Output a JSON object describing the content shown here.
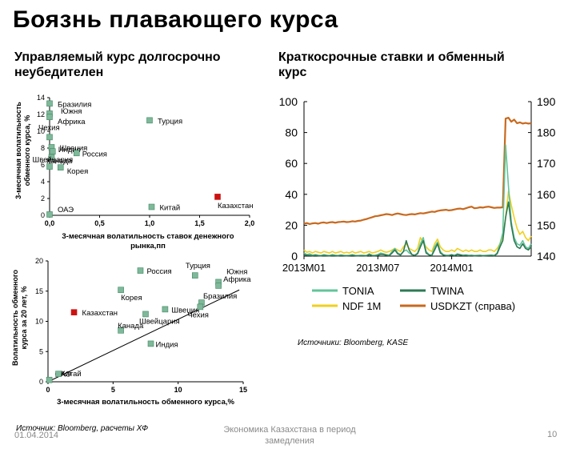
{
  "page": {
    "title": "Боязнь плавающего курса",
    "left_subtitle": "Управляемый курс долгосрочно неубедителен",
    "right_subtitle": "Краткосрочные ставки и обменный курс",
    "left_source": "Источник: Bloomberg,  расчеты ХФ",
    "right_source": "Источники: Bloomberg, KASE",
    "footer_date": "01.04.2014",
    "footer_center": "Экономика Казахстана в период замедления",
    "page_number": "10",
    "colors": {
      "marker": "#7fb89a",
      "marker_edge": "#3f8a63",
      "highlight": "#cc1111"
    }
  },
  "chart_data": [
    {
      "type": "scatter",
      "name": "top-scatter",
      "xlabel": "3-месячная волатильность ставок денежного рынка,пп",
      "ylabel": "3-месячная волатильность обменного курса, %",
      "xlim": [
        0,
        2
      ],
      "ylim": [
        0,
        14
      ],
      "xticks": [
        "0,0",
        "0,5",
        "1,0",
        "1,5",
        "2,0"
      ],
      "yticks": [
        "0",
        "2",
        "4",
        "6",
        "8",
        "10",
        "12",
        "14"
      ],
      "points": [
        {
          "label": "Бразилия",
          "x": 0.0,
          "y": 13.3
        },
        {
          "label": "Южня",
          "x": 0.0,
          "y": 12.1
        },
        {
          "label": "Африка",
          "x": 0.0,
          "y": 11.7
        },
        {
          "label": "Турция",
          "x": 1.0,
          "y": 11.3
        },
        {
          "label": "Чехия",
          "x": 0.0,
          "y": 9.3
        },
        {
          "label": "Швеция",
          "x": 0.02,
          "y": 8.1
        },
        {
          "label": "Индия",
          "x": 0.03,
          "y": 7.6
        },
        {
          "label": "Россия",
          "x": 0.27,
          "y": 7.4
        },
        {
          "label": "Швейцария",
          "x": 0.02,
          "y": 6.9
        },
        {
          "label": "Канада",
          "x": 0.0,
          "y": 5.8
        },
        {
          "label": "Корея",
          "x": 0.11,
          "y": 5.7
        },
        {
          "label": "Китай",
          "x": 1.02,
          "y": 1.0
        },
        {
          "label": "Казахстан",
          "x": 1.68,
          "y": 2.2,
          "highlight": true
        },
        {
          "label": "ОАЭ",
          "x": 0.0,
          "y": 0.1
        }
      ]
    },
    {
      "type": "scatter",
      "name": "bottom-scatter",
      "xlabel": "3-месячная волатильность обменного курса,%",
      "ylabel": "Волатильность обменного курса за 20 лет, %",
      "xlim": [
        0,
        15
      ],
      "ylim": [
        0,
        20
      ],
      "xticks": [
        "0",
        "5",
        "10",
        "15"
      ],
      "yticks": [
        "0",
        "5",
        "10",
        "15",
        "20"
      ],
      "trendline": [
        [
          0,
          0
        ],
        [
          14.7,
          15.2
        ]
      ],
      "points": [
        {
          "label": "Россия",
          "x": 7.1,
          "y": 18.4
        },
        {
          "label": "Турция",
          "x": 11.3,
          "y": 17.6
        },
        {
          "label": "Южня",
          "x": 13.1,
          "y": 16.5
        },
        {
          "label": "Африка",
          "x": 13.1,
          "y": 15.9
        },
        {
          "label": "Корея",
          "x": 5.6,
          "y": 15.2
        },
        {
          "label": "Бразилия",
          "x": 11.8,
          "y": 13.1
        },
        {
          "label": "Швеция",
          "x": 9.0,
          "y": 12.0
        },
        {
          "label": "Чехия",
          "x": 11.7,
          "y": 12.4
        },
        {
          "label": "Швейцария",
          "x": 7.5,
          "y": 11.2
        },
        {
          "label": "Канада",
          "x": 5.6,
          "y": 8.5
        },
        {
          "label": "Индия",
          "x": 7.9,
          "y": 6.3
        },
        {
          "label": "Казахстан",
          "x": 2.0,
          "y": 11.5,
          "highlight": true
        },
        {
          "label": "ОАЭ",
          "x": 0.1,
          "y": 0.3
        },
        {
          "label": "Китай",
          "x": 0.8,
          "y": 1.3
        }
      ]
    },
    {
      "type": "line",
      "name": "rates-chart",
      "x_start": "2013M01",
      "x_ticks": [
        "2013M01",
        "2013M07",
        "2014M01"
      ],
      "x_tick_index": [
        0,
        26,
        52
      ],
      "ylim_left": [
        0,
        100
      ],
      "yticks_left": [
        "0",
        "20",
        "40",
        "60",
        "80",
        "100"
      ],
      "ylim_right": [
        140,
        190
      ],
      "yticks_right": [
        "140",
        "150",
        "160",
        "170",
        "180",
        "190"
      ],
      "series": [
        {
          "name": "USDKZT (справа)",
          "axis": "right",
          "color": "#c8691e",
          "values": [
            150.5,
            150.7,
            150.4,
            150.6,
            150.7,
            150.5,
            150.8,
            150.9,
            150.7,
            150.9,
            151.0,
            150.8,
            151.0,
            151.1,
            151.2,
            151.0,
            151.1,
            151.3,
            151.2,
            151.4,
            151.5,
            151.8,
            152.0,
            152.3,
            152.6,
            152.9,
            153.0,
            153.2,
            153.4,
            153.6,
            153.5,
            153.3,
            153.6,
            153.8,
            153.6,
            153.4,
            153.3,
            153.5,
            153.6,
            153.5,
            153.7,
            153.9,
            153.8,
            154.0,
            154.2,
            154.4,
            154.3,
            154.6,
            154.8,
            154.9,
            155.0,
            154.8,
            154.9,
            155.1,
            155.3,
            155.4,
            155.2,
            155.5,
            155.8,
            156.0,
            155.5,
            155.6,
            155.8,
            155.7,
            155.9,
            156.0,
            155.8,
            155.6,
            155.7,
            155.7,
            155.8,
            184.5,
            184.8,
            183.5,
            184.2,
            183.0,
            183.3,
            182.9,
            183.1,
            182.9,
            183.0
          ]
        },
        {
          "name": "NDF 1M",
          "axis": "left",
          "color": "#f0d020",
          "values": [
            4,
            2.5,
            3,
            2,
            3,
            2.5,
            2,
            3,
            2.5,
            2,
            3,
            2,
            2.5,
            3,
            2,
            2.5,
            2,
            3,
            2,
            2.5,
            3,
            2,
            2.5,
            3,
            2,
            2.5,
            3,
            4,
            3,
            2.5,
            3,
            4,
            5,
            4,
            3,
            6,
            8,
            5,
            4,
            3,
            5,
            12,
            9,
            6,
            4,
            3,
            8,
            11,
            6,
            4,
            3,
            3,
            4,
            3,
            5,
            4,
            3,
            4,
            3,
            4,
            3,
            3,
            4,
            3,
            3,
            4,
            4,
            3,
            5,
            8,
            12,
            25,
            42,
            33,
            25,
            18,
            14,
            16,
            12,
            10,
            13
          ]
        },
        {
          "name": "TONIA",
          "axis": "left",
          "color": "#62c49a",
          "values": [
            2,
            1,
            1.5,
            0.5,
            1,
            0.5,
            0.3,
            1,
            0.5,
            0.3,
            1,
            0.5,
            0.3,
            0.8,
            0.4,
            0.3,
            0.5,
            1,
            0.4,
            0.3,
            0.5,
            0.4,
            0.3,
            1.5,
            0.5,
            0.4,
            1,
            2,
            1.5,
            1,
            0.5,
            3,
            5,
            2,
            1,
            3,
            4,
            2,
            1,
            0.5,
            2,
            8,
            12,
            3,
            1,
            0.5,
            6,
            9,
            3,
            1,
            0.5,
            0.5,
            1,
            0.4,
            1.5,
            1,
            0.5,
            0.8,
            0.4,
            0.5,
            0.3,
            0.4,
            0.5,
            0.3,
            0.4,
            0.5,
            0.6,
            0.4,
            2,
            8,
            15,
            72,
            45,
            22,
            12,
            8,
            7,
            10,
            6,
            5,
            8
          ]
        },
        {
          "name": "TWINA",
          "axis": "left",
          "color": "#2e7a55",
          "values": [
            1,
            0.5,
            0.5,
            0.3,
            0.5,
            0.3,
            0.2,
            0.4,
            0.3,
            0.2,
            0.4,
            0.3,
            0.2,
            0.4,
            0.3,
            0.2,
            0.3,
            0.5,
            0.3,
            0.2,
            0.3,
            0.3,
            0.2,
            1,
            0.3,
            0.3,
            0.5,
            1.2,
            1,
            0.6,
            0.3,
            2,
            4,
            1.5,
            0.7,
            3,
            10,
            4,
            1,
            0.5,
            1.5,
            6,
            10,
            2,
            0.8,
            0.4,
            4,
            8,
            2,
            0.7,
            0.3,
            0.3,
            0.8,
            0.3,
            1,
            0.7,
            0.4,
            0.5,
            0.3,
            0.4,
            0.2,
            0.3,
            0.4,
            0.2,
            0.3,
            0.4,
            0.5,
            0.3,
            1.5,
            6,
            10,
            25,
            35,
            20,
            10,
            6,
            5,
            8,
            5,
            4,
            6
          ]
        }
      ]
    }
  ]
}
